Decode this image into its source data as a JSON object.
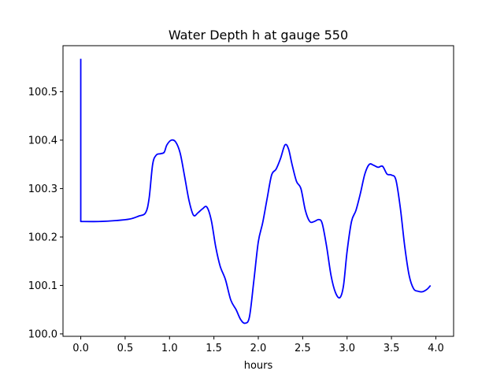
{
  "chart_data": {
    "type": "line",
    "title": "Water Depth h at gauge 550",
    "xlabel": "hours",
    "ylabel": "",
    "xlim": [
      -0.2,
      4.2
    ],
    "ylim": [
      99.995,
      100.595
    ],
    "grid": false,
    "legend": "none",
    "x_ticks": [
      0.0,
      0.5,
      1.0,
      1.5,
      2.0,
      2.5,
      3.0,
      3.5,
      4.0
    ],
    "x_tick_labels": [
      "0.0",
      "0.5",
      "1.0",
      "1.5",
      "2.0",
      "2.5",
      "3.0",
      "3.5",
      "4.0"
    ],
    "y_ticks": [
      100.0,
      100.1,
      100.2,
      100.3,
      100.4,
      100.5
    ],
    "y_tick_labels": [
      "100.0",
      "100.1",
      "100.2",
      "100.3",
      "100.4",
      "100.5"
    ],
    "series": [
      {
        "color": "#0000ff",
        "points": [
          [
            0.0,
            100.568
          ],
          [
            0.0,
            100.232
          ],
          [
            0.2,
            100.232
          ],
          [
            0.4,
            100.234
          ],
          [
            0.55,
            100.237
          ],
          [
            0.65,
            100.243
          ],
          [
            0.73,
            100.25
          ],
          [
            0.77,
            100.28
          ],
          [
            0.81,
            100.35
          ],
          [
            0.85,
            100.369
          ],
          [
            0.9,
            100.372
          ],
          [
            0.94,
            100.375
          ],
          [
            0.97,
            100.39
          ],
          [
            1.02,
            100.4
          ],
          [
            1.07,
            100.396
          ],
          [
            1.12,
            100.373
          ],
          [
            1.17,
            100.325
          ],
          [
            1.22,
            100.275
          ],
          [
            1.27,
            100.245
          ],
          [
            1.32,
            100.25
          ],
          [
            1.37,
            100.258
          ],
          [
            1.42,
            100.262
          ],
          [
            1.47,
            100.235
          ],
          [
            1.52,
            100.18
          ],
          [
            1.57,
            100.14
          ],
          [
            1.63,
            100.112
          ],
          [
            1.69,
            100.07
          ],
          [
            1.75,
            100.05
          ],
          [
            1.8,
            100.03
          ],
          [
            1.85,
            100.022
          ],
          [
            1.9,
            100.035
          ],
          [
            1.95,
            100.11
          ],
          [
            2.0,
            100.19
          ],
          [
            2.05,
            100.23
          ],
          [
            2.1,
            100.28
          ],
          [
            2.15,
            100.328
          ],
          [
            2.2,
            100.34
          ],
          [
            2.25,
            100.362
          ],
          [
            2.3,
            100.39
          ],
          [
            2.34,
            100.382
          ],
          [
            2.38,
            100.35
          ],
          [
            2.43,
            100.315
          ],
          [
            2.48,
            100.3
          ],
          [
            2.53,
            100.255
          ],
          [
            2.58,
            100.232
          ],
          [
            2.63,
            100.232
          ],
          [
            2.68,
            100.236
          ],
          [
            2.72,
            100.228
          ],
          [
            2.77,
            100.18
          ],
          [
            2.82,
            100.12
          ],
          [
            2.87,
            100.085
          ],
          [
            2.92,
            100.075
          ],
          [
            2.96,
            100.1
          ],
          [
            3.0,
            100.17
          ],
          [
            3.05,
            100.232
          ],
          [
            3.1,
            100.255
          ],
          [
            3.15,
            100.29
          ],
          [
            3.2,
            100.33
          ],
          [
            3.25,
            100.35
          ],
          [
            3.3,
            100.348
          ],
          [
            3.35,
            100.344
          ],
          [
            3.4,
            100.346
          ],
          [
            3.45,
            100.33
          ],
          [
            3.5,
            100.328
          ],
          [
            3.55,
            100.318
          ],
          [
            3.6,
            100.26
          ],
          [
            3.65,
            100.18
          ],
          [
            3.7,
            100.12
          ],
          [
            3.75,
            100.093
          ],
          [
            3.8,
            100.088
          ],
          [
            3.85,
            100.087
          ],
          [
            3.9,
            100.092
          ],
          [
            3.94,
            100.1
          ]
        ]
      }
    ]
  }
}
